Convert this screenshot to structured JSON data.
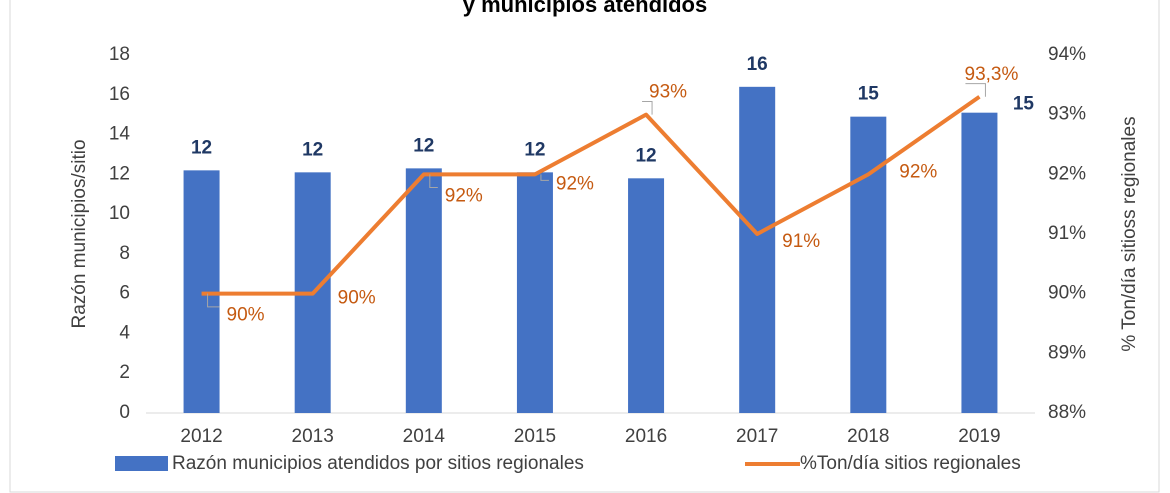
{
  "chart_data": {
    "type": "bar_line",
    "title": "y municipios atendidos",
    "categories": [
      "2012",
      "2013",
      "2014",
      "2015",
      "2016",
      "2017",
      "2018",
      "2019"
    ],
    "series": [
      {
        "name": "Razón municipios atendidos por sitios regionales",
        "type": "bar",
        "color": "#4472c4",
        "values": [
          12.2,
          12.1,
          12.3,
          12.1,
          11.8,
          16.4,
          14.9,
          15.1
        ],
        "value_labels": [
          "12",
          "12",
          "12",
          "12",
          "12",
          "16",
          "15",
          "15"
        ]
      },
      {
        "name": "%Ton/día sitios regionales",
        "type": "line",
        "axis": "y2",
        "color": "#ed7d31",
        "values": [
          90,
          90,
          92,
          92,
          93,
          91,
          92,
          93.3
        ],
        "value_labels": [
          "90%",
          "90%",
          "92%",
          "92%",
          "93%",
          "91%",
          "92%",
          "93,3%"
        ]
      }
    ],
    "ylabel": "Razón municipios/sitio",
    "y2label": "% Ton/día sitioss regionales",
    "ylim": [
      0,
      18
    ],
    "yticks": [
      0,
      2,
      4,
      6,
      8,
      10,
      12,
      14,
      16,
      18
    ],
    "y2lim": [
      88,
      94
    ],
    "y2ticks": [
      {
        "value": 88,
        "label": "88%"
      },
      {
        "value": 89,
        "label": "89%"
      },
      {
        "value": 90,
        "label": "90%"
      },
      {
        "value": 91,
        "label": "91%"
      },
      {
        "value": 92,
        "label": "92%"
      },
      {
        "value": 93,
        "label": "93%"
      },
      {
        "value": 94,
        "label": "94%"
      }
    ],
    "legend": "bottom"
  }
}
